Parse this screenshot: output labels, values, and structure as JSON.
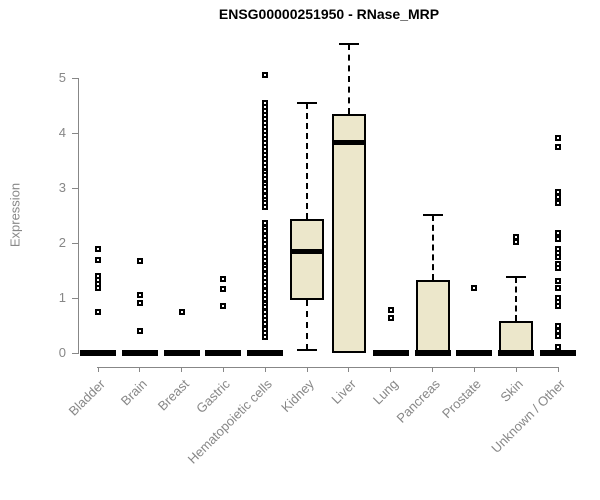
{
  "chart_data": {
    "type": "boxplot",
    "title": "ENSG00000251950 - RNase_MRP",
    "ylabel": "Expression",
    "xlabel": "",
    "ylim": [
      0,
      5.7
    ],
    "yticks": [
      0,
      1,
      2,
      3,
      4,
      5
    ],
    "grid": false,
    "legend": "none",
    "colors": {
      "box_fill": "#ece7cb",
      "box_border": "#000000",
      "median": "#000000",
      "axis": "#878787",
      "tick_text": "#878787",
      "title_text": "#000000",
      "outlier_fill": "#ffffff",
      "outlier_border": "#000000"
    },
    "categories": [
      {
        "label": "Bladder",
        "whisker_low": 0,
        "q1": 0,
        "median": 0,
        "q3": 0,
        "whisker_high": 0,
        "outliers": [
          1.89,
          1.69,
          1.4,
          1.33,
          1.26,
          1.19,
          0.75
        ]
      },
      {
        "label": "Brain",
        "whisker_low": 0,
        "q1": 0,
        "median": 0,
        "q3": 0,
        "whisker_high": 0,
        "outliers": [
          1.67,
          1.05,
          0.91,
          0.4
        ]
      },
      {
        "label": "Breast",
        "whisker_low": 0,
        "q1": 0,
        "median": 0,
        "q3": 0,
        "whisker_high": 0,
        "outliers": [
          0.75
        ]
      },
      {
        "label": "Gastric",
        "whisker_low": 0,
        "q1": 0,
        "median": 0,
        "q3": 0,
        "whisker_high": 0,
        "outliers": [
          1.35,
          1.16,
          0.85
        ]
      },
      {
        "label": "Hematopoietic cells",
        "whisker_low": 0,
        "q1": 0,
        "median": 0,
        "q3": 0,
        "whisker_high": 0,
        "outliers": [
          5.05,
          4.55,
          4.48,
          4.4,
          4.33,
          4.26,
          4.18,
          4.11,
          4.04,
          3.96,
          3.89,
          3.82,
          3.74,
          3.67,
          3.6,
          3.52,
          3.45,
          3.38,
          3.3,
          3.23,
          3.16,
          3.08,
          3.01,
          2.94,
          2.86,
          2.79,
          2.72,
          2.65,
          2.36,
          2.28,
          2.21,
          2.13,
          2.05,
          1.98,
          1.9,
          1.82,
          1.75,
          1.67,
          1.59,
          1.52,
          1.44,
          1.36,
          1.29,
          1.21,
          1.13,
          1.06,
          0.98,
          0.9,
          0.83,
          0.75,
          0.67,
          0.6,
          0.52,
          0.44,
          0.37,
          0.29
        ]
      },
      {
        "label": "Kidney",
        "whisker_low": 0.05,
        "q1": 0.96,
        "median": 1.84,
        "q3": 2.44,
        "whisker_high": 4.55,
        "outliers": []
      },
      {
        "label": "Liver",
        "whisker_low": 0,
        "q1": 0,
        "median": 3.82,
        "q3": 4.35,
        "whisker_high": 5.62,
        "outliers": []
      },
      {
        "label": "Lung",
        "whisker_low": 0,
        "q1": 0,
        "median": 0,
        "q3": 0,
        "whisker_high": 0,
        "outliers": [
          0.78,
          0.64
        ]
      },
      {
        "label": "Pancreas",
        "whisker_low": 0,
        "q1": 0,
        "median": 0,
        "q3": 1.33,
        "whisker_high": 2.51,
        "outliers": []
      },
      {
        "label": "Prostate",
        "whisker_low": 0,
        "q1": 0,
        "median": 0,
        "q3": 0,
        "whisker_high": 0,
        "outliers": [
          1.18
        ]
      },
      {
        "label": "Skin",
        "whisker_low": 0,
        "q1": 0,
        "median": 0,
        "q3": 0.58,
        "whisker_high": 1.38,
        "outliers": [
          2.11,
          2.02
        ]
      },
      {
        "label": "Unknown / Other",
        "whisker_low": 0,
        "q1": 0,
        "median": 0,
        "q3": 0,
        "whisker_high": 0,
        "outliers": [
          3.91,
          3.75,
          2.93,
          2.84,
          2.73,
          2.18,
          2.07,
          1.89,
          1.82,
          1.75,
          1.62,
          1.55,
          1.31,
          1.18,
          1.0,
          0.93,
          0.85,
          0.49,
          0.4,
          0.31,
          0.11
        ]
      }
    ]
  }
}
